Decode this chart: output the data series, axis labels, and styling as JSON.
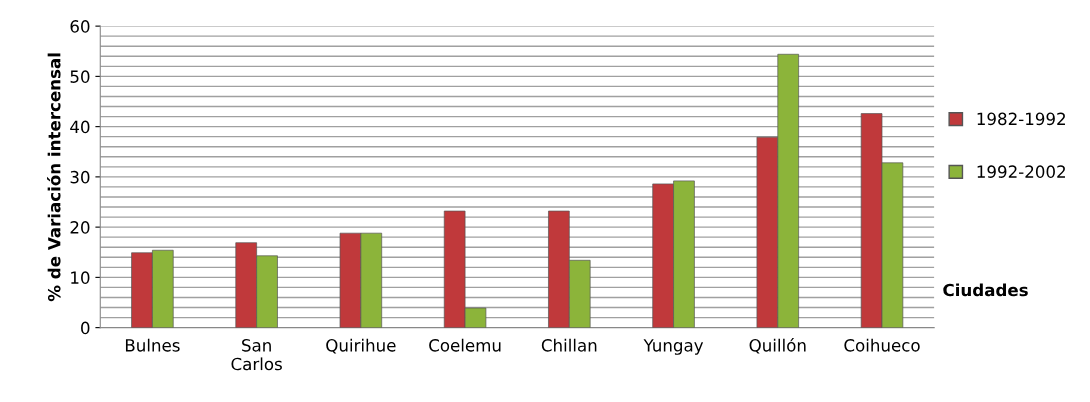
{
  "chart_data": {
    "type": "bar",
    "xlabel": "Ciudades",
    "ylabel": "% de Variación intercensal",
    "categories": [
      "Bulnes",
      "San\nCarlos",
      "Quirihue",
      "Coelemu",
      "Chillan",
      "Yungay",
      "Quillón",
      "Coihueco"
    ],
    "series": [
      {
        "name": "1982-1992",
        "color": "#c0393b",
        "values": [
          14.9,
          16.9,
          18.8,
          23.2,
          23.2,
          28.6,
          37.9,
          42.6
        ]
      },
      {
        "name": "1992-2002",
        "color": "#8cb43a",
        "values": [
          15.4,
          14.3,
          18.8,
          3.9,
          13.4,
          29.2,
          54.4,
          32.8
        ]
      }
    ],
    "ylim": [
      0,
      60
    ],
    "yticks": [
      0,
      {
        "value": 2,
        "label": null
      },
      {
        "value": 4,
        "label": null
      },
      {
        "value": 6,
        "label": null
      },
      {
        "value": 8,
        "label": null
      },
      10,
      {
        "value": 12,
        "label": null
      },
      {
        "value": 14,
        "label": null
      },
      {
        "value": 16,
        "label": null
      },
      {
        "value": 18,
        "label": null
      },
      20,
      {
        "value": 22,
        "label": null
      },
      {
        "value": 24,
        "label": null
      },
      {
        "value": 26,
        "label": null
      },
      {
        "value": 28,
        "label": null
      },
      30,
      {
        "value": 32,
        "label": null
      },
      {
        "value": 34,
        "label": null
      },
      {
        "value": 36,
        "label": null
      },
      {
        "value": 38,
        "label": null
      },
      40,
      {
        "value": 42,
        "label": null
      },
      {
        "value": 44,
        "label": null
      },
      {
        "value": 46,
        "label": null
      },
      {
        "value": 48,
        "label": null
      },
      50,
      {
        "value": 52,
        "label": null
      },
      {
        "value": 54,
        "label": null
      },
      {
        "value": 56,
        "label": null
      },
      {
        "value": 58,
        "label": null
      },
      60
    ],
    "grid": "y",
    "legend": "right"
  }
}
